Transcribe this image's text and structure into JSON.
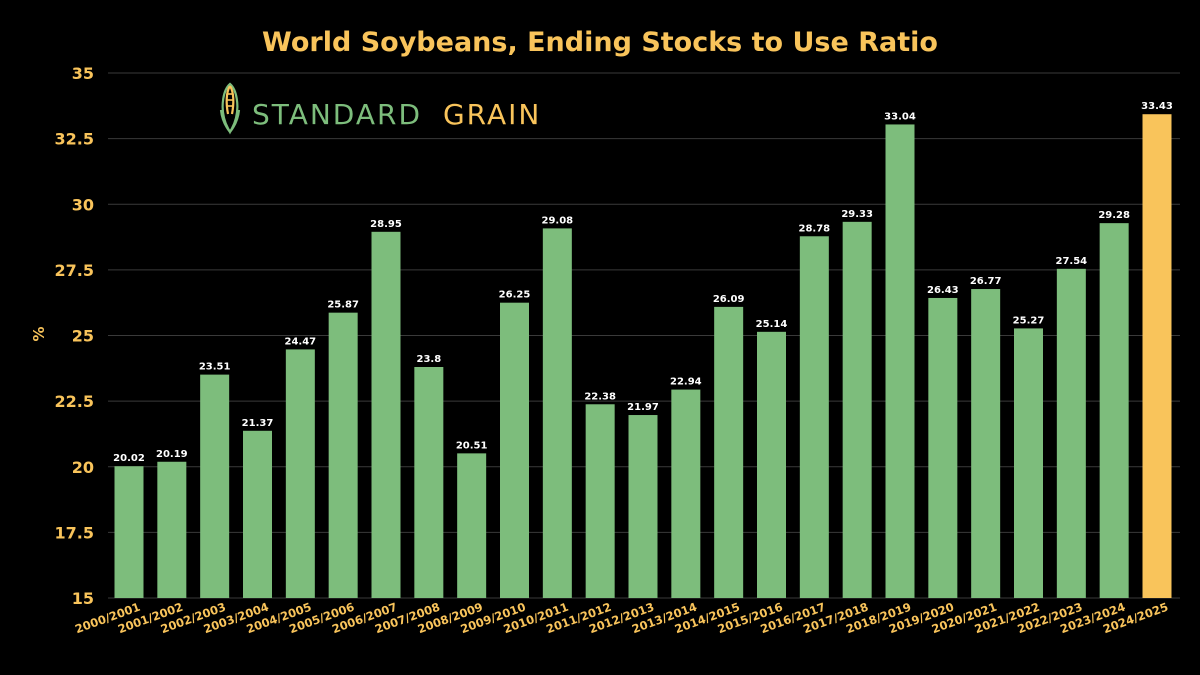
{
  "chart_data": {
    "type": "bar",
    "title": "World Soybeans, Ending Stocks to Use Ratio",
    "ylabel": "%",
    "xlabel": "",
    "ylim": [
      15,
      35
    ],
    "yticks": [
      "15",
      "17.5",
      "20",
      "22.5",
      "25",
      "27.5",
      "30",
      "32.5",
      "35"
    ],
    "grid": true,
    "categories": [
      "2000/2001",
      "2001/2002",
      "2002/2003",
      "2003/2004",
      "2004/2005",
      "2005/2006",
      "2006/2007",
      "2007/2008",
      "2008/2009",
      "2009/2010",
      "2010/2011",
      "2011/2012",
      "2012/2013",
      "2013/2014",
      "2014/2015",
      "2015/2016",
      "2016/2017",
      "2017/2018",
      "2018/2019",
      "2019/2020",
      "2020/2021",
      "2021/2022",
      "2022/2023",
      "2023/2024",
      "2024/2025"
    ],
    "values": [
      20.02,
      20.19,
      23.51,
      21.37,
      24.47,
      25.87,
      28.95,
      23.8,
      20.51,
      26.25,
      29.08,
      22.38,
      21.97,
      22.94,
      26.09,
      25.14,
      28.78,
      29.33,
      33.04,
      26.43,
      26.77,
      25.27,
      27.54,
      29.28,
      33.43
    ],
    "highlight_index": 24
  },
  "brand": {
    "name_part1": "STANDARD",
    "name_part2": "GRAIN",
    "icon": "corn-icon"
  },
  "colors": {
    "background": "#000000",
    "bar": "#7dbd7c",
    "highlight_bar": "#f9c45b",
    "title": "#f9c45b",
    "axis_text": "#f9c45b",
    "gridline": "#3a3a3a",
    "value_label": "#ffffff",
    "brand_green": "#7dbd7c",
    "brand_gold": "#f9c45b"
  }
}
